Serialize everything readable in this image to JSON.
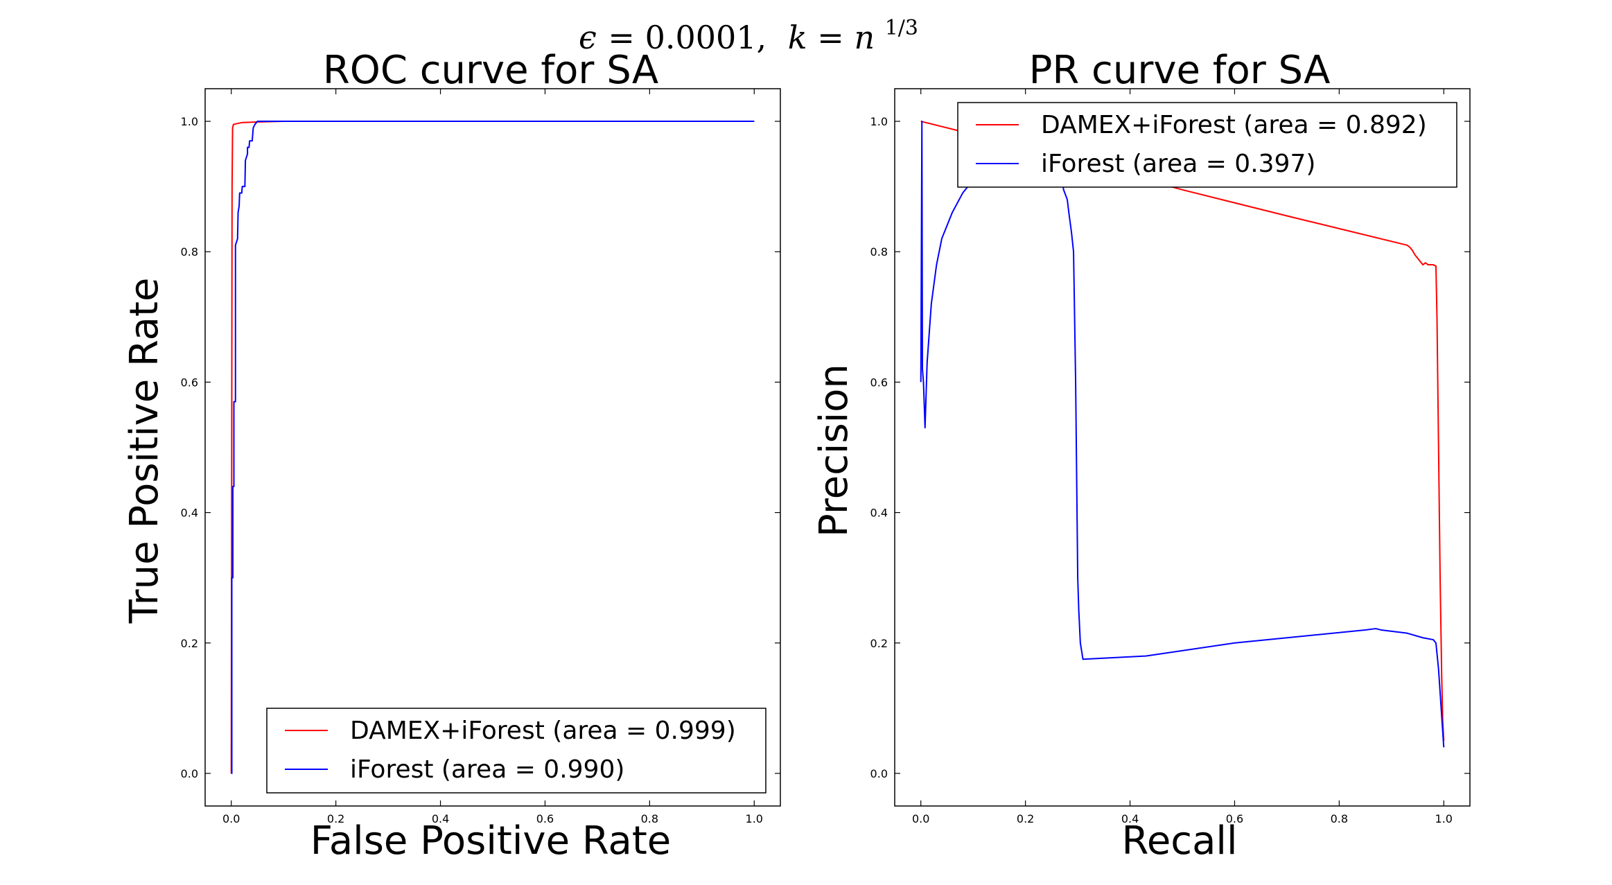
{
  "figure": {
    "suptitle": {
      "eps": "ϵ",
      "eq1": "=",
      "eps_value": "0.0001,",
      "k": "k",
      "eq2": "=",
      "n": "n",
      "exp": "1/3"
    }
  },
  "chart_data": [
    {
      "type": "line",
      "title": "ROC curve for SA",
      "xlabel": "False Positive Rate",
      "ylabel": "True Positive Rate",
      "xlim": [
        -0.05,
        1.05
      ],
      "ylim": [
        -0.05,
        1.05
      ],
      "xticks": [
        "0.0",
        "0.2",
        "0.4",
        "0.6",
        "0.8",
        "1.0"
      ],
      "yticks": [
        "0.0",
        "0.2",
        "0.4",
        "0.6",
        "0.8",
        "1.0"
      ],
      "grid": false,
      "legend_position": "lower-right",
      "series": [
        {
          "name": "DAMEX+iForest (area = 0.999)",
          "color": "#ff0000",
          "x": [
            0.0,
            0.0005,
            0.001,
            0.0015,
            0.0025,
            0.004,
            0.008,
            0.02,
            0.05,
            0.1,
            0.3,
            0.6,
            1.0
          ],
          "y": [
            0.0,
            0.3,
            0.6,
            0.9,
            0.99,
            0.995,
            0.996,
            0.998,
            0.999,
            1.0,
            1.0,
            1.0,
            1.0
          ]
        },
        {
          "name": "iForest (area = 0.990)",
          "color": "#0000ff",
          "x": [
            0.0,
            0.001,
            0.001,
            0.003,
            0.003,
            0.005,
            0.005,
            0.008,
            0.008,
            0.012,
            0.013,
            0.015,
            0.016,
            0.02,
            0.021,
            0.026,
            0.027,
            0.031,
            0.031,
            0.034,
            0.035,
            0.04,
            0.042,
            0.045,
            0.05,
            0.08,
            0.2,
            0.5,
            1.0
          ],
          "y": [
            0.0,
            0.0,
            0.3,
            0.3,
            0.44,
            0.44,
            0.57,
            0.57,
            0.81,
            0.82,
            0.86,
            0.87,
            0.89,
            0.89,
            0.9,
            0.9,
            0.94,
            0.95,
            0.96,
            0.96,
            0.97,
            0.97,
            0.99,
            0.995,
            1.0,
            1.0,
            1.0,
            1.0,
            1.0
          ]
        }
      ]
    },
    {
      "type": "line",
      "title": "PR curve for SA",
      "xlabel": "Recall",
      "ylabel": "Precision",
      "xlim": [
        -0.05,
        1.05
      ],
      "ylim": [
        -0.05,
        1.05
      ],
      "xticks": [
        "0.0",
        "0.2",
        "0.4",
        "0.6",
        "0.8",
        "1.0"
      ],
      "yticks": [
        "0.0",
        "0.2",
        "0.4",
        "0.6",
        "0.8",
        "1.0"
      ],
      "grid": false,
      "legend_position": "upper-right",
      "series": [
        {
          "name": "DAMEX+iForest (area = 0.892)",
          "color": "#ff0000",
          "x": [
            0.0,
            0.2,
            0.5,
            0.7,
            0.93,
            0.935,
            0.94,
            0.945,
            0.95,
            0.96,
            0.965,
            0.97,
            0.98,
            0.985,
            0.987,
            0.99,
            0.993,
            0.996,
            0.998,
            1.0
          ],
          "y": [
            1.0,
            0.96,
            0.895,
            0.855,
            0.81,
            0.807,
            0.802,
            0.795,
            0.79,
            0.78,
            0.783,
            0.78,
            0.78,
            0.778,
            0.7,
            0.5,
            0.3,
            0.15,
            0.08,
            0.05
          ]
        },
        {
          "name": "iForest (area = 0.397)",
          "color": "#0000ff",
          "x": [
            0.0,
            0.002,
            0.003,
            0.005,
            0.008,
            0.012,
            0.02,
            0.03,
            0.04,
            0.06,
            0.08,
            0.1,
            0.12,
            0.15,
            0.2,
            0.25,
            0.27,
            0.273,
            0.28,
            0.283,
            0.288,
            0.292,
            0.296,
            0.298,
            0.3,
            0.302,
            0.305,
            0.31,
            0.43,
            0.6,
            0.85,
            0.87,
            0.88,
            0.93,
            0.96,
            0.98,
            0.985,
            0.99,
            0.995,
            1.0
          ],
          "y": [
            0.6,
            1.0,
            0.62,
            0.6,
            0.53,
            0.63,
            0.72,
            0.78,
            0.82,
            0.86,
            0.89,
            0.91,
            0.925,
            0.935,
            0.94,
            0.935,
            0.91,
            0.895,
            0.88,
            0.86,
            0.83,
            0.8,
            0.6,
            0.45,
            0.3,
            0.25,
            0.2,
            0.175,
            0.18,
            0.2,
            0.22,
            0.222,
            0.22,
            0.215,
            0.208,
            0.205,
            0.2,
            0.16,
            0.1,
            0.04
          ]
        }
      ]
    }
  ]
}
